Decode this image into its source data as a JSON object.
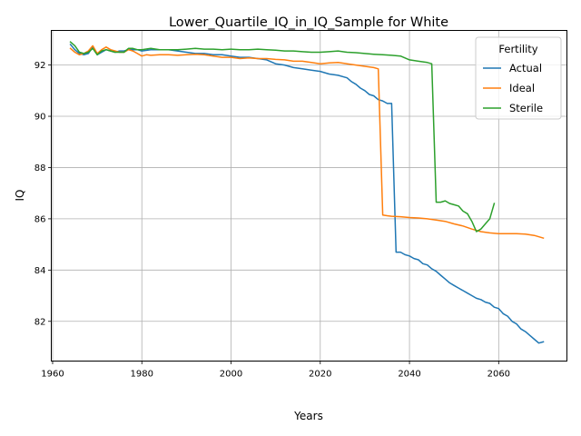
{
  "chart_data": {
    "type": "line",
    "title": "Lower_Quartile_IQ_in_IQ_Sample for White",
    "xlabel": "Years",
    "ylabel": "IQ",
    "xlim": [
      1959.7,
      2075.3
    ],
    "ylim": [
      80.45,
      93.35
    ],
    "xticks": [
      1960,
      1980,
      2000,
      2020,
      2040,
      2060
    ],
    "yticks": [
      82,
      84,
      86,
      88,
      90,
      92
    ],
    "grid": true,
    "legend": {
      "title": "Fertility",
      "placement": "top-right"
    },
    "series": [
      {
        "name": "Actual",
        "color": "#1f77b4",
        "points": [
          [
            1964,
            92.8
          ],
          [
            1965,
            92.6
          ],
          [
            1966,
            92.45
          ],
          [
            1967,
            92.4
          ],
          [
            1968,
            92.45
          ],
          [
            1969,
            92.7
          ],
          [
            1970,
            92.4
          ],
          [
            1971,
            92.5
          ],
          [
            1972,
            92.6
          ],
          [
            1973,
            92.55
          ],
          [
            1974,
            92.5
          ],
          [
            1975,
            92.55
          ],
          [
            1976,
            92.55
          ],
          [
            1977,
            92.6
          ],
          [
            1978,
            92.6
          ],
          [
            1979,
            92.6
          ],
          [
            1980,
            92.55
          ],
          [
            1982,
            92.6
          ],
          [
            1984,
            92.6
          ],
          [
            1986,
            92.6
          ],
          [
            1988,
            92.55
          ],
          [
            1990,
            92.5
          ],
          [
            1992,
            92.45
          ],
          [
            1994,
            92.45
          ],
          [
            1996,
            92.4
          ],
          [
            1998,
            92.4
          ],
          [
            2000,
            92.35
          ],
          [
            2002,
            92.3
          ],
          [
            2004,
            92.3
          ],
          [
            2006,
            92.25
          ],
          [
            2008,
            92.2
          ],
          [
            2010,
            92.05
          ],
          [
            2012,
            92.0
          ],
          [
            2014,
            91.9
          ],
          [
            2016,
            91.85
          ],
          [
            2018,
            91.8
          ],
          [
            2020,
            91.75
          ],
          [
            2022,
            91.65
          ],
          [
            2024,
            91.6
          ],
          [
            2026,
            91.5
          ],
          [
            2027,
            91.35
          ],
          [
            2028,
            91.25
          ],
          [
            2029,
            91.1
          ],
          [
            2030,
            91.0
          ],
          [
            2031,
            90.85
          ],
          [
            2032,
            90.8
          ],
          [
            2033,
            90.65
          ],
          [
            2034,
            90.6
          ],
          [
            2035,
            90.5
          ],
          [
            2036,
            90.5
          ],
          [
            2037,
            84.7
          ],
          [
            2038,
            84.7
          ],
          [
            2039,
            84.6
          ],
          [
            2040,
            84.55
          ],
          [
            2041,
            84.45
          ],
          [
            2042,
            84.4
          ],
          [
            2043,
            84.25
          ],
          [
            2044,
            84.2
          ],
          [
            2045,
            84.05
          ],
          [
            2046,
            83.95
          ],
          [
            2047,
            83.8
          ],
          [
            2048,
            83.65
          ],
          [
            2049,
            83.5
          ],
          [
            2050,
            83.4
          ],
          [
            2051,
            83.3
          ],
          [
            2052,
            83.2
          ],
          [
            2053,
            83.1
          ],
          [
            2054,
            83.0
          ],
          [
            2055,
            82.9
          ],
          [
            2056,
            82.85
          ],
          [
            2057,
            82.75
          ],
          [
            2058,
            82.7
          ],
          [
            2059,
            82.55
          ],
          [
            2060,
            82.5
          ],
          [
            2061,
            82.3
          ],
          [
            2062,
            82.2
          ],
          [
            2063,
            82.0
          ],
          [
            2064,
            81.9
          ],
          [
            2065,
            81.7
          ],
          [
            2066,
            81.6
          ],
          [
            2067,
            81.45
          ],
          [
            2068,
            81.3
          ],
          [
            2069,
            81.15
          ],
          [
            2070,
            81.2
          ]
        ]
      },
      {
        "name": "Ideal",
        "color": "#ff7f0e",
        "points": [
          [
            1964,
            92.65
          ],
          [
            1965,
            92.5
          ],
          [
            1966,
            92.4
          ],
          [
            1967,
            92.45
          ],
          [
            1968,
            92.55
          ],
          [
            1969,
            92.75
          ],
          [
            1970,
            92.45
          ],
          [
            1971,
            92.6
          ],
          [
            1972,
            92.7
          ],
          [
            1973,
            92.6
          ],
          [
            1974,
            92.55
          ],
          [
            1975,
            92.5
          ],
          [
            1976,
            92.5
          ],
          [
            1977,
            92.6
          ],
          [
            1978,
            92.55
          ],
          [
            1979,
            92.45
          ],
          [
            1980,
            92.35
          ],
          [
            1981,
            92.4
          ],
          [
            1982,
            92.38
          ],
          [
            1984,
            92.4
          ],
          [
            1986,
            92.4
          ],
          [
            1988,
            92.38
          ],
          [
            1990,
            92.4
          ],
          [
            1992,
            92.42
          ],
          [
            1994,
            92.4
          ],
          [
            1996,
            92.35
          ],
          [
            1998,
            92.3
          ],
          [
            2000,
            92.3
          ],
          [
            2002,
            92.25
          ],
          [
            2004,
            92.28
          ],
          [
            2006,
            92.25
          ],
          [
            2008,
            92.25
          ],
          [
            2010,
            92.22
          ],
          [
            2012,
            92.2
          ],
          [
            2014,
            92.15
          ],
          [
            2016,
            92.15
          ],
          [
            2018,
            92.1
          ],
          [
            2020,
            92.05
          ],
          [
            2022,
            92.08
          ],
          [
            2024,
            92.1
          ],
          [
            2026,
            92.05
          ],
          [
            2028,
            92.0
          ],
          [
            2030,
            91.95
          ],
          [
            2032,
            91.9
          ],
          [
            2033,
            91.85
          ],
          [
            2034,
            86.15
          ],
          [
            2035,
            86.12
          ],
          [
            2036,
            86.1
          ],
          [
            2038,
            86.08
          ],
          [
            2040,
            86.05
          ],
          [
            2042,
            86.03
          ],
          [
            2044,
            86.0
          ],
          [
            2046,
            85.95
          ],
          [
            2048,
            85.9
          ],
          [
            2050,
            85.8
          ],
          [
            2052,
            85.72
          ],
          [
            2054,
            85.6
          ],
          [
            2056,
            85.5
          ],
          [
            2058,
            85.45
          ],
          [
            2060,
            85.42
          ],
          [
            2062,
            85.42
          ],
          [
            2064,
            85.42
          ],
          [
            2066,
            85.4
          ],
          [
            2068,
            85.35
          ],
          [
            2070,
            85.25
          ]
        ]
      },
      {
        "name": "Sterile",
        "color": "#2ca02c",
        "points": [
          [
            1964,
            92.9
          ],
          [
            1965,
            92.75
          ],
          [
            1966,
            92.5
          ],
          [
            1967,
            92.45
          ],
          [
            1968,
            92.5
          ],
          [
            1969,
            92.65
          ],
          [
            1970,
            92.4
          ],
          [
            1971,
            92.55
          ],
          [
            1972,
            92.6
          ],
          [
            1973,
            92.55
          ],
          [
            1974,
            92.5
          ],
          [
            1975,
            92.5
          ],
          [
            1976,
            92.5
          ],
          [
            1977,
            92.65
          ],
          [
            1978,
            92.65
          ],
          [
            1979,
            92.6
          ],
          [
            1980,
            92.6
          ],
          [
            1982,
            92.65
          ],
          [
            1984,
            92.6
          ],
          [
            1986,
            92.6
          ],
          [
            1988,
            92.6
          ],
          [
            1990,
            92.62
          ],
          [
            1992,
            92.65
          ],
          [
            1994,
            92.62
          ],
          [
            1996,
            92.62
          ],
          [
            1998,
            92.6
          ],
          [
            2000,
            92.62
          ],
          [
            2002,
            92.6
          ],
          [
            2004,
            92.6
          ],
          [
            2006,
            92.62
          ],
          [
            2008,
            92.6
          ],
          [
            2010,
            92.58
          ],
          [
            2012,
            92.55
          ],
          [
            2014,
            92.55
          ],
          [
            2016,
            92.52
          ],
          [
            2018,
            92.5
          ],
          [
            2020,
            92.5
          ],
          [
            2022,
            92.52
          ],
          [
            2024,
            92.55
          ],
          [
            2026,
            92.5
          ],
          [
            2028,
            92.48
          ],
          [
            2030,
            92.45
          ],
          [
            2032,
            92.42
          ],
          [
            2034,
            92.4
          ],
          [
            2036,
            92.38
          ],
          [
            2038,
            92.35
          ],
          [
            2040,
            92.2
          ],
          [
            2042,
            92.15
          ],
          [
            2044,
            92.1
          ],
          [
            2045,
            92.05
          ],
          [
            2046,
            86.65
          ],
          [
            2047,
            86.65
          ],
          [
            2048,
            86.7
          ],
          [
            2049,
            86.6
          ],
          [
            2050,
            86.55
          ],
          [
            2051,
            86.5
          ],
          [
            2052,
            86.3
          ],
          [
            2053,
            86.2
          ],
          [
            2054,
            85.9
          ],
          [
            2055,
            85.5
          ],
          [
            2056,
            85.6
          ],
          [
            2057,
            85.8
          ],
          [
            2058,
            86.0
          ],
          [
            2059,
            86.6
          ]
        ]
      }
    ]
  }
}
